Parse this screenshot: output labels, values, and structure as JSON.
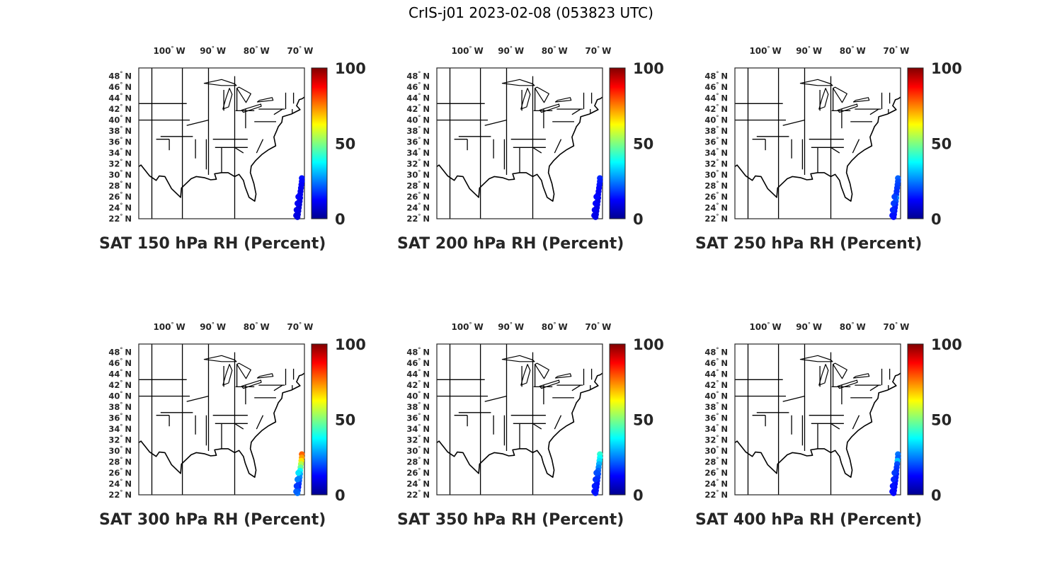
{
  "figure_title": "CrIS-j01 2023-02-08 (053823 UTC)",
  "colormap": [
    "#00008f",
    "#0000ff",
    "#00ffff",
    "#ffff00",
    "#ff0000",
    "#800000"
  ],
  "map": {
    "lon_ticks": [
      {
        "value": -100,
        "deg": "100",
        "hemi": "W"
      },
      {
        "value": -90,
        "deg": "90",
        "hemi": "W"
      },
      {
        "value": -80,
        "deg": "80",
        "hemi": "W"
      },
      {
        "value": -70,
        "deg": "70",
        "hemi": "W"
      }
    ],
    "lat_ticks": [
      {
        "value": 48,
        "deg": "48",
        "hemi": "N"
      },
      {
        "value": 46,
        "deg": "46",
        "hemi": "N"
      },
      {
        "value": 44,
        "deg": "44",
        "hemi": "N"
      },
      {
        "value": 42,
        "deg": "42",
        "hemi": "N"
      },
      {
        "value": 40,
        "deg": "40",
        "hemi": "N"
      },
      {
        "value": 38,
        "deg": "38",
        "hemi": "N"
      },
      {
        "value": 36,
        "deg": "36",
        "hemi": "N"
      },
      {
        "value": 34,
        "deg": "34",
        "hemi": "N"
      },
      {
        "value": 32,
        "deg": "32",
        "hemi": "N"
      },
      {
        "value": 30,
        "deg": "30",
        "hemi": "N"
      },
      {
        "value": 28,
        "deg": "28",
        "hemi": "N"
      },
      {
        "value": 26,
        "deg": "26",
        "hemi": "N"
      },
      {
        "value": 24,
        "deg": "24",
        "hemi": "N"
      },
      {
        "value": 22,
        "deg": "22",
        "hemi": "N"
      }
    ],
    "lon_range": [
      -107,
      -69
    ],
    "lat_range": [
      22,
      49.5
    ]
  },
  "colorbar": {
    "min": 0,
    "max": 100,
    "ticks": [
      "100",
      "50",
      "0"
    ]
  },
  "panels": [
    {
      "title": "SAT 150 hPa RH (Percent)",
      "points": [
        {
          "lon": -69.6,
          "lat": 29.4,
          "rh": 14
        },
        {
          "lon": -69.6,
          "lat": 28.8,
          "rh": 13
        },
        {
          "lon": -69.7,
          "lat": 28.2,
          "rh": 12
        },
        {
          "lon": -69.8,
          "lat": 27.6,
          "rh": 11
        },
        {
          "lon": -69.9,
          "lat": 27.0,
          "rh": 10
        },
        {
          "lon": -70.0,
          "lat": 26.4,
          "rh": 10
        },
        {
          "lon": -70.0,
          "lat": 25.8,
          "rh": 9
        },
        {
          "lon": -70.1,
          "lat": 25.2,
          "rh": 9
        },
        {
          "lon": -70.2,
          "lat": 24.6,
          "rh": 8
        },
        {
          "lon": -70.3,
          "lat": 24.0,
          "rh": 8
        },
        {
          "lon": -70.4,
          "lat": 23.4,
          "rh": 8
        },
        {
          "lon": -70.5,
          "lat": 22.8,
          "rh": 8
        },
        {
          "lon": -70.6,
          "lat": 22.3,
          "rh": 8
        },
        {
          "lon": -70.9,
          "lat": 22.6,
          "rh": 9
        },
        {
          "lon": -70.8,
          "lat": 23.6,
          "rh": 10
        },
        {
          "lon": -70.6,
          "lat": 24.8,
          "rh": 11
        },
        {
          "lon": -70.4,
          "lat": 26.0,
          "rh": 12
        }
      ]
    },
    {
      "title": "SAT 200 hPa RH (Percent)",
      "points": [
        {
          "lon": -69.6,
          "lat": 29.4,
          "rh": 16
        },
        {
          "lon": -69.6,
          "lat": 28.8,
          "rh": 15
        },
        {
          "lon": -69.7,
          "lat": 28.2,
          "rh": 14
        },
        {
          "lon": -69.8,
          "lat": 27.6,
          "rh": 13
        },
        {
          "lon": -69.9,
          "lat": 27.0,
          "rh": 12
        },
        {
          "lon": -70.0,
          "lat": 26.4,
          "rh": 11
        },
        {
          "lon": -70.0,
          "lat": 25.8,
          "rh": 11
        },
        {
          "lon": -70.1,
          "lat": 25.2,
          "rh": 10
        },
        {
          "lon": -70.2,
          "lat": 24.6,
          "rh": 10
        },
        {
          "lon": -70.3,
          "lat": 24.0,
          "rh": 9
        },
        {
          "lon": -70.4,
          "lat": 23.4,
          "rh": 9
        },
        {
          "lon": -70.5,
          "lat": 22.8,
          "rh": 9
        },
        {
          "lon": -70.6,
          "lat": 22.3,
          "rh": 9
        },
        {
          "lon": -70.9,
          "lat": 22.6,
          "rh": 10
        },
        {
          "lon": -70.8,
          "lat": 23.6,
          "rh": 11
        },
        {
          "lon": -70.6,
          "lat": 24.8,
          "rh": 12
        },
        {
          "lon": -70.4,
          "lat": 26.0,
          "rh": 13
        }
      ]
    },
    {
      "title": "SAT 250 hPa RH (Percent)",
      "points": [
        {
          "lon": -69.6,
          "lat": 29.4,
          "rh": 22
        },
        {
          "lon": -69.6,
          "lat": 28.8,
          "rh": 20
        },
        {
          "lon": -69.7,
          "lat": 28.2,
          "rh": 19
        },
        {
          "lon": -69.8,
          "lat": 27.6,
          "rh": 18
        },
        {
          "lon": -69.9,
          "lat": 27.0,
          "rh": 17
        },
        {
          "lon": -70.0,
          "lat": 26.4,
          "rh": 17
        },
        {
          "lon": -70.0,
          "lat": 25.8,
          "rh": 25
        },
        {
          "lon": -70.1,
          "lat": 25.2,
          "rh": 20
        },
        {
          "lon": -70.2,
          "lat": 24.6,
          "rh": 16
        },
        {
          "lon": -70.3,
          "lat": 24.0,
          "rh": 15
        },
        {
          "lon": -70.4,
          "lat": 23.4,
          "rh": 14
        },
        {
          "lon": -70.5,
          "lat": 22.8,
          "rh": 14
        },
        {
          "lon": -70.6,
          "lat": 22.3,
          "rh": 13
        },
        {
          "lon": -70.9,
          "lat": 22.6,
          "rh": 14
        },
        {
          "lon": -70.8,
          "lat": 23.6,
          "rh": 16
        },
        {
          "lon": -70.6,
          "lat": 24.8,
          "rh": 18
        },
        {
          "lon": -70.4,
          "lat": 26.0,
          "rh": 19
        }
      ]
    },
    {
      "title": "SAT 300 hPa RH (Percent)",
      "points": [
        {
          "lon": -69.6,
          "lat": 29.4,
          "rh": 78
        },
        {
          "lon": -69.6,
          "lat": 28.8,
          "rh": 72
        },
        {
          "lon": -69.7,
          "lat": 28.2,
          "rh": 65
        },
        {
          "lon": -69.8,
          "lat": 27.6,
          "rh": 55
        },
        {
          "lon": -69.9,
          "lat": 27.0,
          "rh": 48
        },
        {
          "lon": -70.0,
          "lat": 26.4,
          "rh": 38
        },
        {
          "lon": -70.0,
          "lat": 25.8,
          "rh": 30
        },
        {
          "lon": -70.1,
          "lat": 25.2,
          "rh": 26
        },
        {
          "lon": -70.2,
          "lat": 24.6,
          "rh": 22
        },
        {
          "lon": -70.3,
          "lat": 24.0,
          "rh": 18
        },
        {
          "lon": -70.4,
          "lat": 23.4,
          "rh": 15
        },
        {
          "lon": -70.5,
          "lat": 22.8,
          "rh": 20
        },
        {
          "lon": -70.6,
          "lat": 22.3,
          "rh": 24
        },
        {
          "lon": -70.9,
          "lat": 22.6,
          "rh": 22
        },
        {
          "lon": -70.8,
          "lat": 23.6,
          "rh": 18
        },
        {
          "lon": -70.6,
          "lat": 24.8,
          "rh": 25
        },
        {
          "lon": -70.4,
          "lat": 26.0,
          "rh": 35
        }
      ]
    },
    {
      "title": "SAT 350 hPa RH (Percent)",
      "points": [
        {
          "lon": -69.6,
          "lat": 29.4,
          "rh": 42
        },
        {
          "lon": -69.6,
          "lat": 28.8,
          "rh": 38
        },
        {
          "lon": -69.7,
          "lat": 28.2,
          "rh": 35
        },
        {
          "lon": -69.8,
          "lat": 27.6,
          "rh": 30
        },
        {
          "lon": -69.9,
          "lat": 27.0,
          "rh": 26
        },
        {
          "lon": -70.0,
          "lat": 26.4,
          "rh": 22
        },
        {
          "lon": -70.0,
          "lat": 25.8,
          "rh": 20
        },
        {
          "lon": -70.1,
          "lat": 25.2,
          "rh": 18
        },
        {
          "lon": -70.2,
          "lat": 24.6,
          "rh": 16
        },
        {
          "lon": -70.3,
          "lat": 24.0,
          "rh": 14
        },
        {
          "lon": -70.4,
          "lat": 23.4,
          "rh": 13
        },
        {
          "lon": -70.5,
          "lat": 22.8,
          "rh": 14
        },
        {
          "lon": -70.6,
          "lat": 22.3,
          "rh": 15
        },
        {
          "lon": -70.9,
          "lat": 22.6,
          "rh": 14
        },
        {
          "lon": -70.8,
          "lat": 23.6,
          "rh": 15
        },
        {
          "lon": -70.6,
          "lat": 24.8,
          "rh": 17
        },
        {
          "lon": -70.4,
          "lat": 26.0,
          "rh": 20
        }
      ]
    },
    {
      "title": "SAT 400 hPa RH (Percent)",
      "points": [
        {
          "lon": -69.6,
          "lat": 29.4,
          "rh": 24
        },
        {
          "lon": -69.6,
          "lat": 28.8,
          "rh": 22
        },
        {
          "lon": -69.7,
          "lat": 28.2,
          "rh": 32
        },
        {
          "lon": -69.8,
          "lat": 27.6,
          "rh": 20
        },
        {
          "lon": -69.9,
          "lat": 27.0,
          "rh": 18
        },
        {
          "lon": -70.0,
          "lat": 26.4,
          "rh": 17
        },
        {
          "lon": -70.0,
          "lat": 25.8,
          "rh": 16
        },
        {
          "lon": -70.1,
          "lat": 25.2,
          "rh": 15
        },
        {
          "lon": -70.2,
          "lat": 24.6,
          "rh": 14
        },
        {
          "lon": -70.3,
          "lat": 24.0,
          "rh": 13
        },
        {
          "lon": -70.4,
          "lat": 23.4,
          "rh": 12
        },
        {
          "lon": -70.5,
          "lat": 22.8,
          "rh": 12
        },
        {
          "lon": -70.6,
          "lat": 22.3,
          "rh": 12
        },
        {
          "lon": -70.9,
          "lat": 22.6,
          "rh": 13
        },
        {
          "lon": -70.8,
          "lat": 23.6,
          "rh": 14
        },
        {
          "lon": -70.6,
          "lat": 24.8,
          "rh": 16
        },
        {
          "lon": -70.4,
          "lat": 26.0,
          "rh": 18
        }
      ]
    }
  ]
}
